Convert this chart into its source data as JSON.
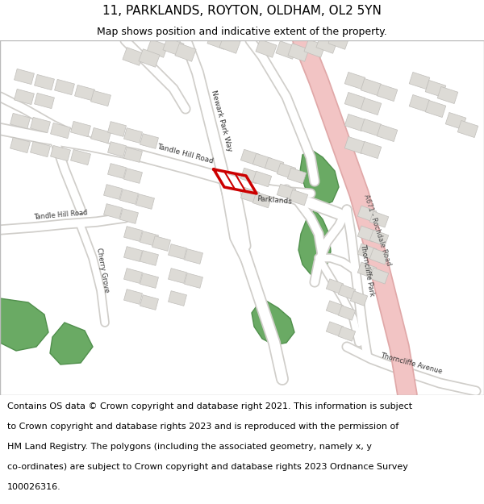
{
  "title_line1": "11, PARKLANDS, ROYTON, OLDHAM, OL2 5YN",
  "title_line2": "Map shows position and indicative extent of the property.",
  "footer_lines": [
    "Contains OS data © Crown copyright and database right 2021. This information is subject",
    "to Crown copyright and database rights 2023 and is reproduced with the permission of",
    "HM Land Registry. The polygons (including the associated geometry, namely x, y",
    "co-ordinates) are subject to Crown copyright and database rights 2023 Ordnance Survey",
    "100026316."
  ],
  "map_bg": "#f2f0ed",
  "road_color": "#ffffff",
  "road_outline": "#d0ceca",
  "major_road_color": "#f2c4c4",
  "major_road_outline": "#e0a8a8",
  "building_color": "#dddbd6",
  "building_outline": "#c0beba",
  "green_color": "#6aaa64",
  "green_outline": "#508f4c",
  "red_color": "#cc0000",
  "header_bg": "#ffffff",
  "footer_bg": "#ffffff",
  "title_fontsize": 11,
  "subtitle_fontsize": 9,
  "footer_fontsize": 8,
  "map_border_color": "#bbbbbb"
}
